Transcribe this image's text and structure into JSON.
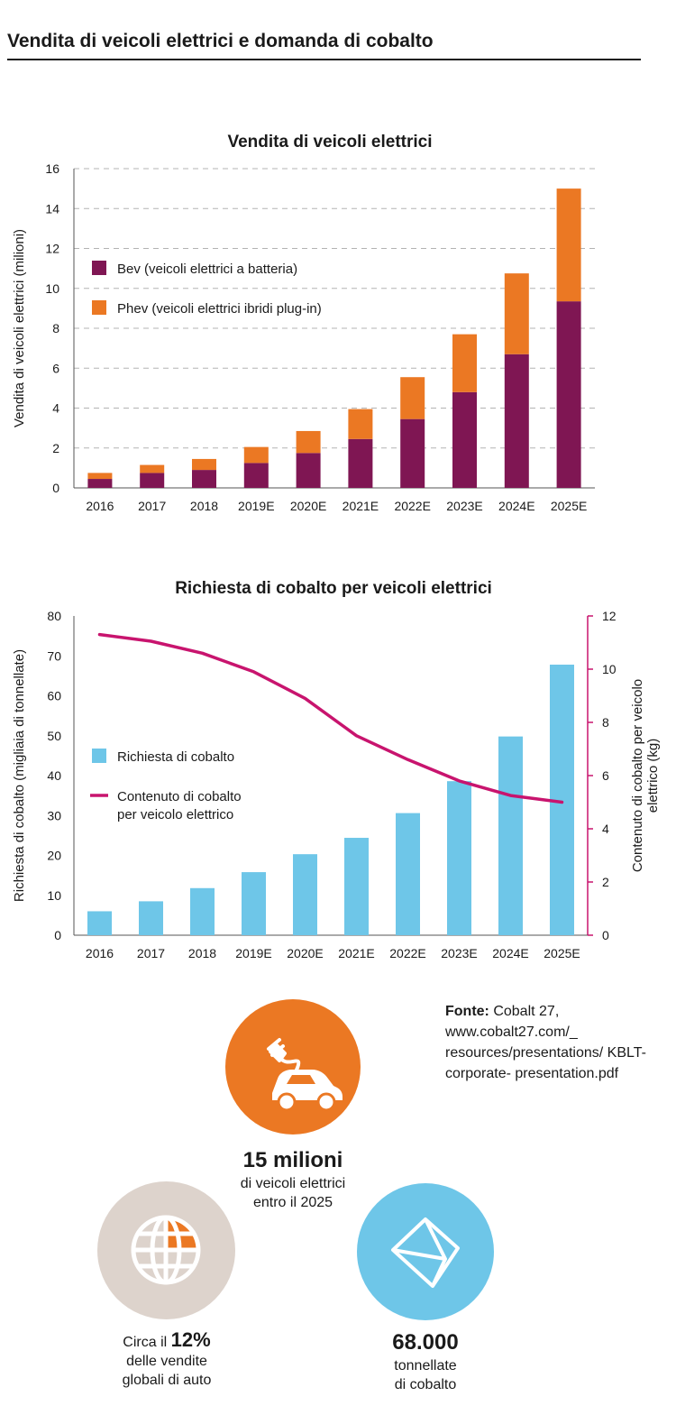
{
  "page_title": "Vendita di veicoli elettrici e domanda di cobalto",
  "colors": {
    "bev": "#7f1653",
    "phev": "#eb7823",
    "cobalt_bar": "#6ec6e8",
    "cobalt_line": "#c8146e",
    "globe_bg": "#ddd3cc"
  },
  "chart_data": [
    {
      "type": "bar",
      "stacked": true,
      "title": "Vendita di veicoli elettrici",
      "ylabel": "Vendita di veicoli elettrici (milioni)",
      "xlabel": "",
      "ylim": [
        0,
        16
      ],
      "yticks": [
        0,
        2,
        4,
        6,
        8,
        10,
        12,
        14,
        16
      ],
      "grid": true,
      "legend_position": "upper-left",
      "categories": [
        "2016",
        "2017",
        "2018",
        "2019E",
        "2020E",
        "2021E",
        "2022E",
        "2023E",
        "2024E",
        "2025E"
      ],
      "series": [
        {
          "name": "Bev (veicoli elettrici a batteria)",
          "color": "#7f1653",
          "values": [
            0.45,
            0.75,
            0.9,
            1.25,
            1.75,
            2.45,
            3.45,
            4.8,
            6.7,
            9.35
          ]
        },
        {
          "name": "Phev (veicoli elettrici ibridi plug-in)",
          "color": "#eb7823",
          "values": [
            0.3,
            0.4,
            0.55,
            0.8,
            1.1,
            1.5,
            2.1,
            2.9,
            4.05,
            5.65
          ]
        }
      ]
    },
    {
      "type": "bar",
      "title": "Richiesta di cobalto per veicoli elettrici",
      "ylabel": "Richiesta di cobalto (migliaia di tonnellate)",
      "y2label": "Contenuto di cobalto per veicolo elettrico (kg)",
      "xlabel": "",
      "ylim": [
        0,
        80
      ],
      "yticks": [
        0,
        10,
        20,
        30,
        40,
        50,
        60,
        70,
        80
      ],
      "y2lim": [
        0,
        12
      ],
      "y2ticks": [
        0,
        2,
        4,
        6,
        8,
        10,
        12
      ],
      "grid": false,
      "legend_position": "center-left",
      "categories": [
        "2016",
        "2017",
        "2018",
        "2019E",
        "2020E",
        "2021E",
        "2022E",
        "2023E",
        "2024E",
        "2025E"
      ],
      "series": [
        {
          "name": "Richiesta di cobalto",
          "type": "bar",
          "axis": "left",
          "color": "#6ec6e8",
          "values": [
            6,
            8.5,
            11.8,
            15.8,
            20.3,
            24.4,
            30.6,
            38.6,
            49.8,
            67.8
          ]
        },
        {
          "name": "Contenuto di cobalto per veicolo elettrico",
          "legend_lines": [
            "Contenuto di cobalto",
            "per veicolo elettrico"
          ],
          "type": "line",
          "axis": "right",
          "color": "#c8146e",
          "values": [
            11.3,
            11.05,
            10.6,
            9.9,
            8.9,
            7.5,
            6.6,
            5.8,
            5.25,
            5.0
          ]
        }
      ]
    }
  ],
  "source": {
    "label": "Fonte:",
    "text": " Cobalt 27, www.cobalt27.com/_ resources/presentations/ KBLT-corporate- presentation.pdf"
  },
  "stats": {
    "ev": {
      "icon": "electric-car-icon",
      "big": "15 milioni",
      "line1": "di veicoli elettrici",
      "line2": "entro il 2025"
    },
    "share": {
      "icon": "globe-icon",
      "prefix": "Circa il ",
      "big": "12%",
      "line1": "delle vendite",
      "line2": "globali di auto"
    },
    "cobalt": {
      "icon": "cobalt-crystal-icon",
      "big": "68.000",
      "line1": "tonnellate",
      "line2": "di cobalto"
    }
  }
}
